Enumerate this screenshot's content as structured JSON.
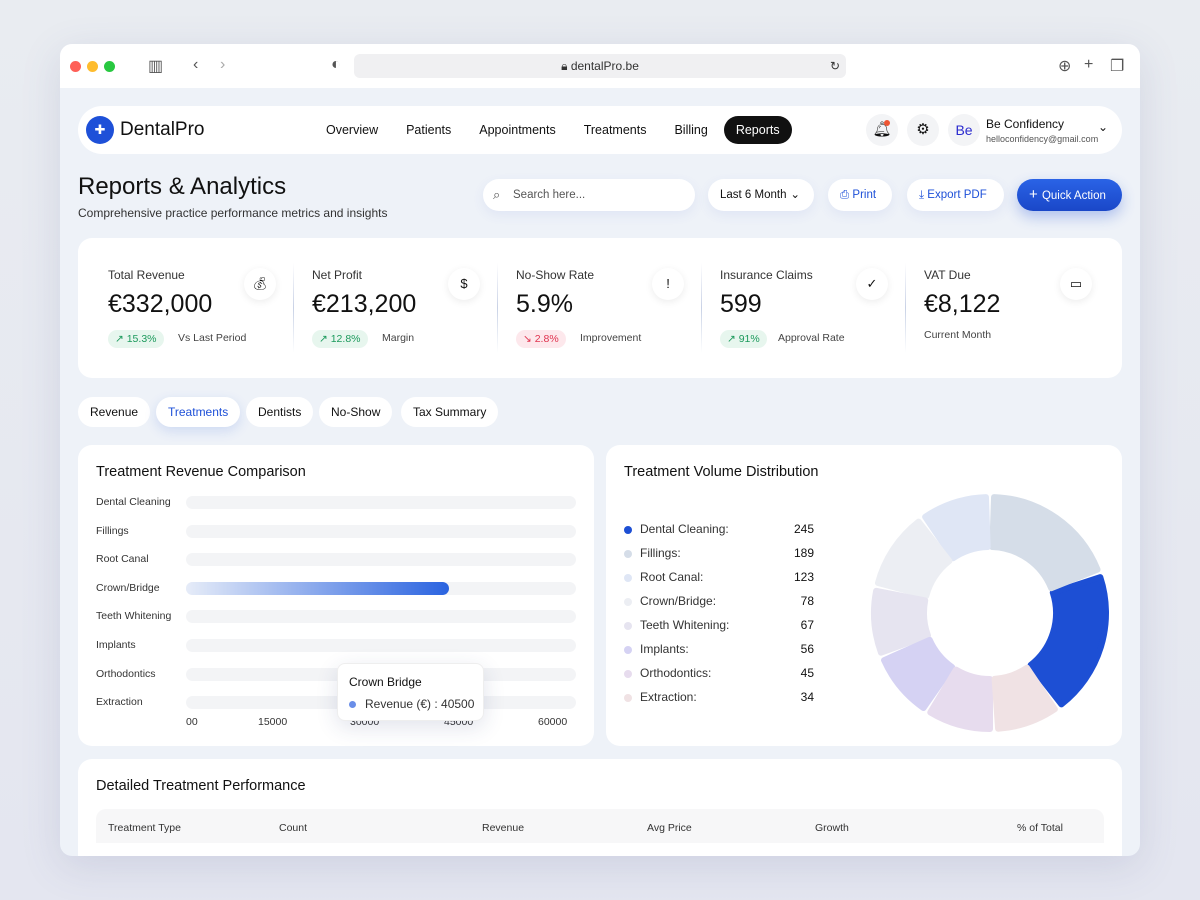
{
  "browser": {
    "url": "dentalPro.be"
  },
  "nav": {
    "brand": "DentalPro",
    "links": [
      "Overview",
      "Patients",
      "Appointments",
      "Treatments",
      "Billing",
      "Reports"
    ],
    "active": "Reports",
    "user": {
      "initials": "Be",
      "name": "Be Confidency",
      "email": "helloconfidency@gmail.com"
    }
  },
  "header": {
    "title": "Reports & Analytics",
    "subtitle": "Comprehensive practice performance metrics and insights",
    "search_placeholder": "Search here...",
    "period": "Last 6 Month",
    "print": "Print",
    "export": "Export PDF",
    "quick_action": "Quick Action"
  },
  "stats": [
    {
      "label": "Total Revenue",
      "value": "€332,000",
      "badge": "15.3%",
      "trend": "up",
      "sub": "Vs Last Period",
      "icon": "money-bag-icon"
    },
    {
      "label": "Net Profit",
      "value": "€213,200",
      "badge": "12.8%",
      "trend": "up",
      "sub": "Margin",
      "icon": "dollar-icon"
    },
    {
      "label": "No-Show Rate",
      "value": "5.9%",
      "badge": "2.8%",
      "trend": "down",
      "sub": "Improvement",
      "icon": "alert-icon"
    },
    {
      "label": "Insurance Claims",
      "value": "599",
      "badge": "91%",
      "trend": "up",
      "sub": "Approval Rate",
      "icon": "shield-check-icon"
    },
    {
      "label": "VAT Due",
      "value": "€8,122",
      "sub": "Current Month",
      "icon": "calendar-icon"
    }
  ],
  "tabs": [
    "Revenue",
    "Treatments",
    "Dentists",
    "No-Show",
    "Tax Summary"
  ],
  "active_tab": "Treatments",
  "chart_data": [
    {
      "type": "bar",
      "orientation": "horizontal",
      "title": "Treatment Revenue Comparison",
      "categories": [
        "Dental Cleaning",
        "Fillings",
        "Root Canal",
        "Crown/Bridge",
        "Teeth Whitening",
        "Implants",
        "Orthodontics",
        "Extraction"
      ],
      "values": [
        0,
        0,
        0,
        40500,
        0,
        0,
        0,
        0
      ],
      "xticks": [
        "00",
        "15000",
        "30000",
        "45000",
        "60000"
      ],
      "xlim": [
        0,
        60000
      ],
      "tooltip": {
        "title": "Crown Bridge",
        "label": "Revenue (€) : 40500"
      }
    },
    {
      "type": "pie",
      "title": "Treatment Volume Distribution",
      "labels": [
        "Dental Cleaning:",
        "Fillings:",
        "Root Canal:",
        "Crown/Bridge:",
        "Teeth Whitening:",
        "Implants:",
        "Orthodontics:",
        "Extraction:"
      ],
      "values": [
        245,
        189,
        123,
        78,
        67,
        56,
        45,
        34
      ],
      "colors": [
        "#1d4fd4",
        "#d5dde8",
        "#dfe6f5",
        "#eceef3",
        "#e6e4f0",
        "#d5d2f3",
        "#e7dcee",
        "#f0e2e4"
      ]
    }
  ],
  "table": {
    "title": "Detailed Treatment Performance",
    "columns": [
      "Treatment Type",
      "Count",
      "Revenue",
      "Avg Price",
      "Growth",
      "% of Total"
    ]
  }
}
